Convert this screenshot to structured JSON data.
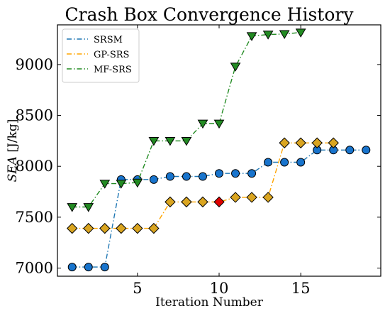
{
  "chart_data": {
    "type": "line",
    "title": "Crash Box Convergence History",
    "xlabel": "Iteration Number",
    "ylabel_italic": "SEA",
    "ylabel_unit": " [J/kg]",
    "xlim": [
      0.1,
      19.9
    ],
    "ylim": [
      6920,
      9390
    ],
    "xticks": [
      5,
      10,
      15
    ],
    "yticks": [
      7000,
      7500,
      8000,
      8500,
      9000
    ],
    "legend_position": "top-left",
    "series": [
      {
        "name": "SRSM",
        "color": "#1f77b4",
        "marker": "circle",
        "marker_fill": "#1874cd",
        "x": [
          1,
          2,
          3,
          4,
          5,
          6,
          7,
          8,
          9,
          10,
          11,
          12,
          13,
          14,
          15,
          16,
          17,
          18,
          19
        ],
        "y": [
          7010,
          7010,
          7010,
          7870,
          7870,
          7870,
          7900,
          7900,
          7900,
          7930,
          7930,
          7930,
          8040,
          8040,
          8040,
          8160,
          8160,
          8160,
          8160
        ]
      },
      {
        "name": "GP-SRS",
        "color": "#ffa500",
        "marker": "diamond",
        "marker_fill": "#daa520",
        "x": [
          1,
          2,
          3,
          4,
          5,
          6,
          7,
          8,
          9,
          10,
          11,
          12,
          13,
          14,
          15,
          16,
          17
        ],
        "y": [
          7390,
          7390,
          7390,
          7390,
          7390,
          7390,
          7650,
          7650,
          7650,
          7650,
          7695,
          7695,
          7695,
          8230,
          8230,
          8230,
          8230
        ],
        "highlight_index": 9,
        "highlight_fill": "#e00000"
      },
      {
        "name": "MF-SRS",
        "color": "#228b22",
        "marker": "triangle-down",
        "marker_fill": "#228b22",
        "x": [
          1,
          2,
          3,
          4,
          5,
          6,
          7,
          8,
          9,
          10,
          11,
          12,
          13,
          14,
          15
        ],
        "y": [
          7600,
          7600,
          7830,
          7830,
          7840,
          8250,
          8250,
          8250,
          8420,
          8420,
          8980,
          9280,
          9295,
          9300,
          9315
        ]
      }
    ]
  }
}
